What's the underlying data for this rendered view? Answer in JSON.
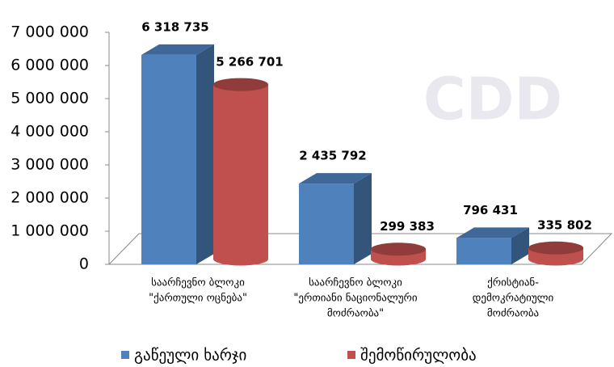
{
  "watermark": "CDD",
  "chart_data": {
    "type": "bar3d",
    "categories": [
      [
        "საარჩევნო ბლოკი",
        "\"ქართული ოცნება\""
      ],
      [
        "საარჩევნო ბლოკი",
        "\"ერთიანი ნაციონალური",
        "მოძრაობა\""
      ],
      [
        "ქრისტიან-",
        "დემოკრატიული",
        "მოძრაობა"
      ]
    ],
    "series": [
      {
        "name": "გაწეული ხარჯი",
        "color": "#4f81bd",
        "shape": "box",
        "values": [
          6318735,
          2435792,
          796431
        ],
        "value_labels": [
          "6 318 735",
          "2 435 792",
          "796 431"
        ]
      },
      {
        "name": "შემოწირულობა",
        "color": "#c0504d",
        "shape": "cylinder",
        "values": [
          5266701,
          299383,
          335802
        ],
        "value_labels": [
          "5 266 701",
          "299 383",
          "335 802"
        ]
      }
    ],
    "ylim": [
      0,
      7000000
    ],
    "yticks": [
      0,
      {
        "value": 1000000,
        "label": "1 000 000"
      },
      {
        "value": 2000000,
        "label": "2 000 000"
      },
      {
        "value": 3000000,
        "label": "3 000 000"
      },
      {
        "value": 4000000,
        "label": "4 000 000"
      },
      {
        "value": 5000000,
        "label": "5 000 000"
      },
      {
        "value": 6000000,
        "label": "6 000 000"
      },
      {
        "value": 7000000,
        "label": "7 000 000"
      }
    ],
    "legend": "bottom"
  }
}
